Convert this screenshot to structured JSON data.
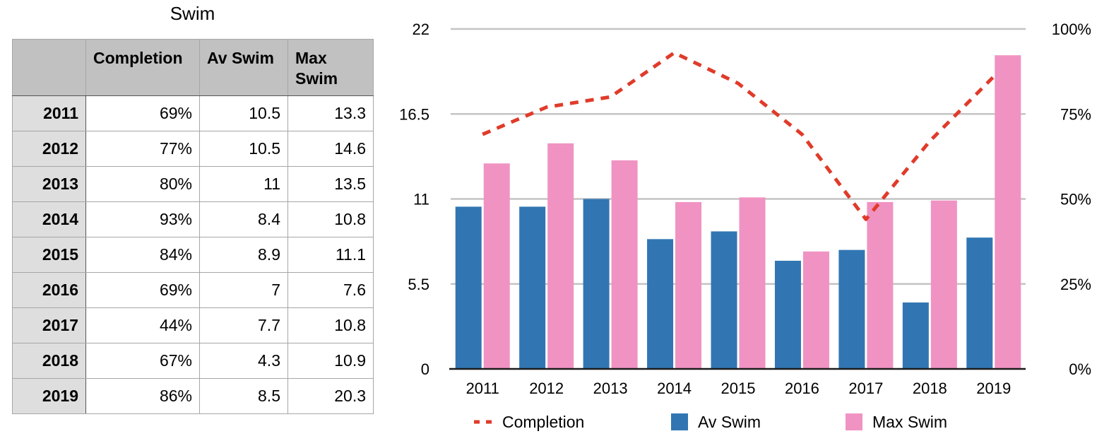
{
  "table": {
    "title": "Swim",
    "headers": [
      "",
      "Completion",
      "Av Swim",
      "Max\nSwim"
    ],
    "header_lines": {
      "max_swim": [
        "Max",
        "Swim"
      ]
    },
    "rows": [
      {
        "year": "2011",
        "completion": "69%",
        "av_swim": "10.5",
        "max_swim": "13.3"
      },
      {
        "year": "2012",
        "completion": "77%",
        "av_swim": "10.5",
        "max_swim": "14.6"
      },
      {
        "year": "2013",
        "completion": "80%",
        "av_swim": "11",
        "max_swim": "13.5"
      },
      {
        "year": "2014",
        "completion": "93%",
        "av_swim": "8.4",
        "max_swim": "10.8"
      },
      {
        "year": "2015",
        "completion": "84%",
        "av_swim": "8.9",
        "max_swim": "11.1"
      },
      {
        "year": "2016",
        "completion": "69%",
        "av_swim": "7",
        "max_swim": "7.6"
      },
      {
        "year": "2017",
        "completion": "44%",
        "av_swim": "7.7",
        "max_swim": "10.8"
      },
      {
        "year": "2018",
        "completion": "67%",
        "av_swim": "4.3",
        "max_swim": "10.9"
      },
      {
        "year": "2019",
        "completion": "86%",
        "av_swim": "8.5",
        "max_swim": "20.3"
      }
    ]
  },
  "chart_data": {
    "type": "bar",
    "title": "Swim",
    "categories": [
      "2011",
      "2012",
      "2013",
      "2014",
      "2015",
      "2016",
      "2017",
      "2018",
      "2019"
    ],
    "series": [
      {
        "name": "Av Swim",
        "type": "bar",
        "axis": "left",
        "color": "#3176b3",
        "values": [
          10.5,
          10.5,
          11,
          8.4,
          8.9,
          7,
          7.7,
          4.3,
          8.5
        ]
      },
      {
        "name": "Max Swim",
        "type": "bar",
        "axis": "left",
        "color": "#f093c2",
        "values": [
          13.3,
          14.6,
          13.5,
          10.8,
          11.1,
          7.6,
          10.8,
          10.9,
          20.3
        ]
      },
      {
        "name": "Completion",
        "type": "line",
        "style": "dashed",
        "axis": "right",
        "color": "#e03b2a",
        "values": [
          0.69,
          0.77,
          0.8,
          0.93,
          0.84,
          0.69,
          0.44,
          0.67,
          0.86
        ]
      }
    ],
    "left_axis": {
      "ylim": [
        0,
        22
      ],
      "ticks": [
        "0",
        "5.5",
        "11",
        "16.5",
        "22"
      ]
    },
    "right_axis": {
      "ylim": [
        0,
        1
      ],
      "ticks": [
        "0%",
        "25%",
        "50%",
        "75%",
        "100%"
      ]
    },
    "xlabel": "",
    "ylabel": "",
    "grid": true,
    "legend": {
      "placement": "bottom",
      "items": [
        "Completion",
        "Av Swim",
        "Max Swim"
      ]
    }
  }
}
